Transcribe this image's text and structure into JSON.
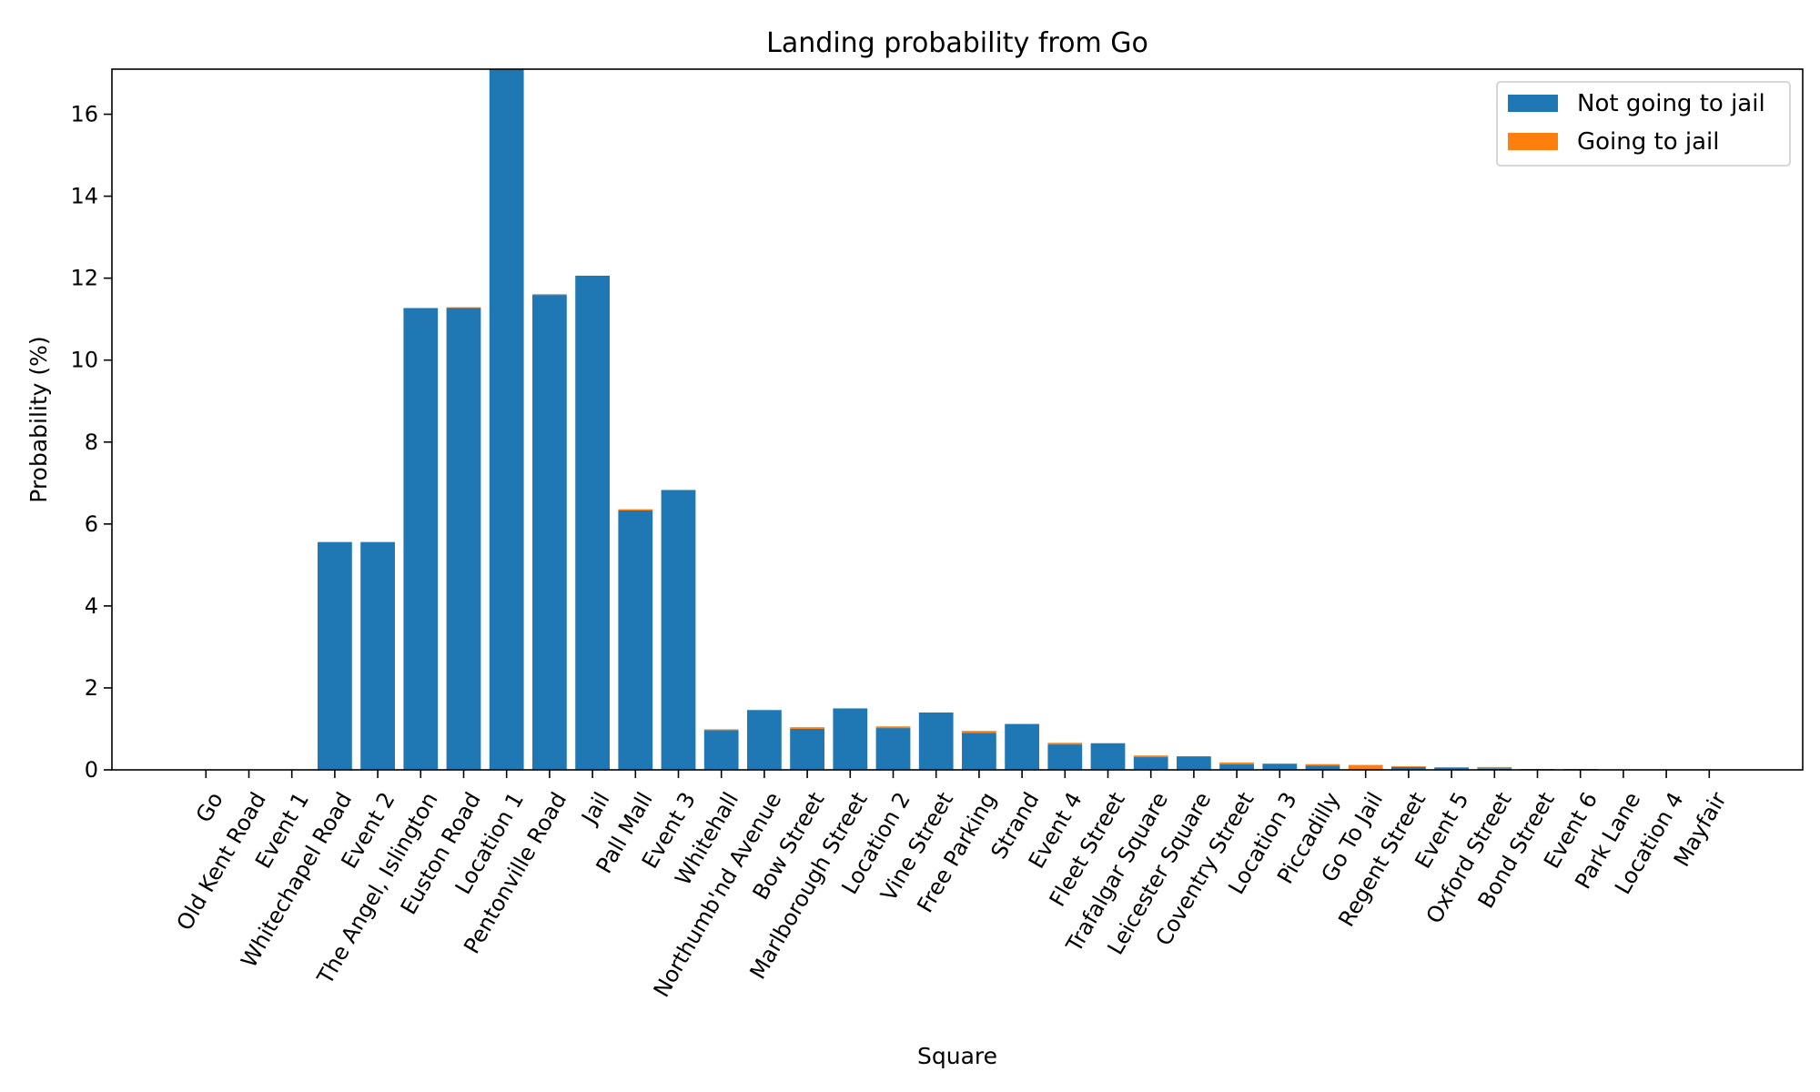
{
  "chart_data": {
    "type": "bar",
    "stacked": true,
    "title": "Landing probability from Go",
    "xlabel": "Square",
    "ylabel": "Probability (%)",
    "ylim": [
      0,
      17.1
    ],
    "yticks": [
      0,
      2,
      4,
      6,
      8,
      10,
      12,
      14,
      16
    ],
    "grid": false,
    "legend_position": "top-right",
    "categories": [
      "Go",
      "Old Kent Road",
      "Event 1",
      "Whitechapel Road",
      "Event 2",
      "The Angel, Islington",
      "Euston Road",
      "Location 1",
      "Pentonville Road",
      "Jail",
      "Pall Mall",
      "Event 3",
      "Whitehall",
      "Northumb'nd Avenue",
      "Bow Street",
      "Marlborough Street",
      "Location 2",
      "Vine Street",
      "Free Parking",
      "Strand",
      "Event 4",
      "Fleet Street",
      "Trafalgar Square",
      "Leicester Square",
      "Coventry Street",
      "Location 3",
      "Piccadilly",
      "Go To Jail",
      "Regent Street",
      "Event 5",
      "Oxford Street",
      "Bond Street",
      "Event 6",
      "Park Lane",
      "Location 4",
      "Mayfair"
    ],
    "series": [
      {
        "name": "Not going to jail",
        "color": "#1f77b4",
        "values": [
          0,
          0,
          0,
          5.56,
          5.56,
          11.27,
          11.27,
          17.4,
          11.59,
          12.06,
          6.33,
          6.83,
          0.97,
          1.46,
          1.0,
          1.5,
          1.02,
          1.4,
          0.9,
          1.12,
          0.62,
          0.65,
          0.31,
          0.33,
          0.14,
          0.15,
          0.1,
          0.0,
          0.07,
          0.06,
          0.04,
          0.02,
          0.02,
          0,
          0,
          0
        ]
      },
      {
        "name": "Going to jail",
        "color": "#ff7f0e",
        "values": [
          0,
          0,
          0,
          0,
          0,
          0,
          0.02,
          0,
          0.02,
          0,
          0.03,
          0,
          0.02,
          0,
          0.04,
          0,
          0.04,
          0,
          0.05,
          0,
          0.04,
          0,
          0.04,
          0,
          0.04,
          0,
          0.04,
          0.12,
          0.02,
          0,
          0.03,
          0,
          0,
          0,
          0,
          0
        ]
      }
    ]
  }
}
